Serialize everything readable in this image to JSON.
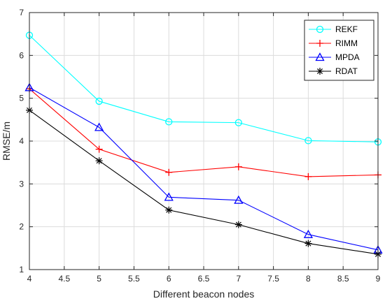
{
  "chart_data": {
    "type": "line",
    "title": "",
    "xlabel": "Different beacon nodes",
    "ylabel": "RMSE/m",
    "xlim": [
      4,
      9
    ],
    "ylim": [
      1,
      7
    ],
    "xticks": [
      4,
      4.5,
      5,
      5.5,
      6,
      6.5,
      7,
      7.5,
      8,
      8.5,
      9
    ],
    "xtick_labels": [
      "4",
      "4.5",
      "5",
      "5.5",
      "6",
      "6.5",
      "7",
      "7.5",
      "8",
      "8.5",
      "9"
    ],
    "yticks": [
      1,
      2,
      3,
      4,
      5,
      6,
      7
    ],
    "ytick_labels": [
      "1",
      "2",
      "3",
      "4",
      "5",
      "6",
      "7"
    ],
    "grid": true,
    "legend_position": "top-right",
    "x": [
      4,
      5,
      6,
      7,
      8,
      9
    ],
    "series": [
      {
        "name": "REKF",
        "color": "#00ffff",
        "marker": "circle",
        "values": [
          6.47,
          4.93,
          4.45,
          4.43,
          4.01,
          3.98
        ]
      },
      {
        "name": "RIMM",
        "color": "#ff0000",
        "marker": "plus",
        "values": [
          5.22,
          3.81,
          3.27,
          3.4,
          3.17,
          3.21
        ]
      },
      {
        "name": "MPDA",
        "color": "#0000ff",
        "marker": "triangle",
        "values": [
          5.25,
          4.32,
          2.69,
          2.62,
          1.82,
          1.46
        ]
      },
      {
        "name": "RDAT",
        "color": "#000000",
        "marker": "star",
        "values": [
          4.72,
          3.54,
          2.39,
          2.05,
          1.61,
          1.36
        ]
      }
    ]
  }
}
